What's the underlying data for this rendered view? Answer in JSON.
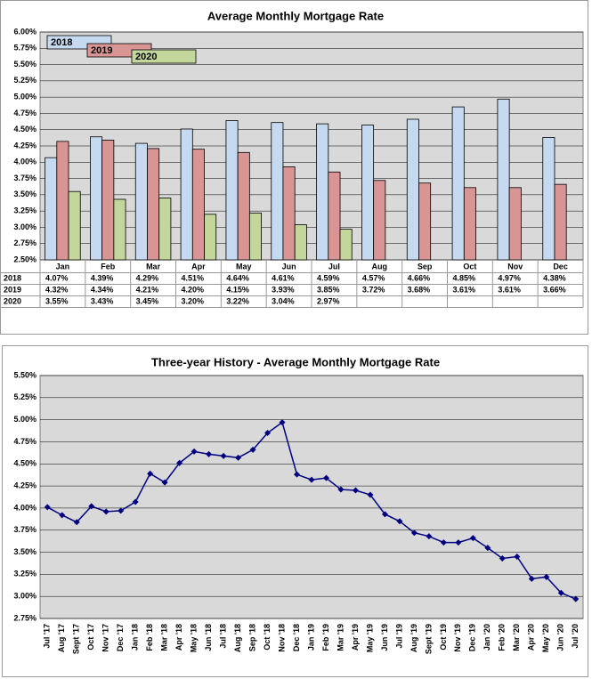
{
  "chart_data": [
    {
      "type": "bar",
      "title": "Average Monthly Mortgage Rate",
      "categories": [
        "Jan",
        "Feb",
        "Mar",
        "Apr",
        "May",
        "Jun",
        "Jul",
        "Aug",
        "Sep",
        "Oct",
        "Nov",
        "Dec"
      ],
      "series": [
        {
          "name": "2018",
          "color": "#c5d9f1",
          "values": [
            4.07,
            4.39,
            4.29,
            4.51,
            4.64,
            4.61,
            4.59,
            4.57,
            4.66,
            4.85,
            4.97,
            4.38
          ],
          "value_labels": [
            "4.07%",
            "4.39%",
            "4.29%",
            "4.51%",
            "4.64%",
            "4.61%",
            "4.59%",
            "4.57%",
            "4.66%",
            "4.85%",
            "4.97%",
            "4.38%"
          ]
        },
        {
          "name": "2019",
          "color": "#d99594",
          "values": [
            4.32,
            4.34,
            4.21,
            4.2,
            4.15,
            3.93,
            3.85,
            3.72,
            3.68,
            3.61,
            3.61,
            3.66
          ],
          "value_labels": [
            "4.32%",
            "4.34%",
            "4.21%",
            "4.20%",
            "4.15%",
            "3.93%",
            "3.85%",
            "3.72%",
            "3.68%",
            "3.61%",
            "3.61%",
            "3.66%"
          ]
        },
        {
          "name": "2020",
          "color": "#c3d69b",
          "values": [
            3.55,
            3.43,
            3.45,
            3.2,
            3.22,
            3.04,
            2.97,
            null,
            null,
            null,
            null,
            null
          ],
          "value_labels": [
            "3.55%",
            "3.43%",
            "3.45%",
            "3.20%",
            "3.22%",
            "3.04%",
            "2.97%",
            null,
            null,
            null,
            null,
            null
          ]
        }
      ],
      "ylim": [
        2.5,
        6.0
      ],
      "yticks": [
        {
          "value": 2.5,
          "label": "2.50%"
        },
        {
          "value": 2.75,
          "label": "2.75%"
        },
        {
          "value": 3.0,
          "label": "3.00%"
        },
        {
          "value": 3.25,
          "label": "3.25%"
        },
        {
          "value": 3.5,
          "label": "3.50%"
        },
        {
          "value": 3.75,
          "label": "3.75%"
        },
        {
          "value": 4.0,
          "label": "4.00%"
        },
        {
          "value": 4.25,
          "label": "4.25%"
        },
        {
          "value": 4.5,
          "label": "4.50%"
        },
        {
          "value": 4.75,
          "label": "4.75%"
        },
        {
          "value": 5.0,
          "label": "5.00%"
        },
        {
          "value": 5.25,
          "label": "5.25%"
        },
        {
          "value": 5.5,
          "label": "5.50%"
        },
        {
          "value": 5.75,
          "label": "5.75%"
        },
        {
          "value": 6.0,
          "label": "6.00%"
        }
      ],
      "grid": true
    },
    {
      "type": "line",
      "title": "Three-year History - Average Monthly Mortgage Rate",
      "categories": [
        "Jul '17",
        "Aug '17",
        "Sept '17",
        "Oct '17",
        "Nov '17",
        "Dec '17",
        "Jan '18",
        "Feb '18",
        "Mar '18",
        "Apr '18",
        "May '18",
        "Jun '18",
        "Jul '18",
        "Aug '18",
        "Sep '18",
        "Oct '18",
        "Nov '18",
        "Dec '18",
        "Jan '19",
        "Feb '19",
        "Mar '19",
        "Apr '19",
        "May '19",
        "Jun '19",
        "Jul '19",
        "Aug '19",
        "Sept '19",
        "Oct '19",
        "Nov '19",
        "Dec '19",
        "Jan '20",
        "Feb '20",
        "Mar '20",
        "Apr '20",
        "May '20",
        "Jun '20",
        "Jul '20"
      ],
      "values": [
        4.01,
        3.92,
        3.84,
        4.02,
        3.96,
        3.97,
        4.07,
        4.39,
        4.29,
        4.51,
        4.64,
        4.61,
        4.59,
        4.57,
        4.66,
        4.85,
        4.97,
        4.38,
        4.32,
        4.34,
        4.21,
        4.2,
        4.15,
        3.93,
        3.85,
        3.72,
        3.68,
        3.61,
        3.61,
        3.66,
        3.55,
        3.43,
        3.45,
        3.2,
        3.22,
        3.04,
        2.97
      ],
      "color": "#000080",
      "ylim": [
        2.75,
        5.5
      ],
      "yticks": [
        {
          "value": 2.75,
          "label": "2.75%"
        },
        {
          "value": 3.0,
          "label": "3.00%"
        },
        {
          "value": 3.25,
          "label": "3.25%"
        },
        {
          "value": 3.5,
          "label": "3.50%"
        },
        {
          "value": 3.75,
          "label": "3.75%"
        },
        {
          "value": 4.0,
          "label": "4.00%"
        },
        {
          "value": 4.25,
          "label": "4.25%"
        },
        {
          "value": 4.5,
          "label": "4.50%"
        },
        {
          "value": 4.75,
          "label": "4.75%"
        },
        {
          "value": 5.0,
          "label": "5.00%"
        },
        {
          "value": 5.25,
          "label": "5.25%"
        },
        {
          "value": 5.5,
          "label": "5.50%"
        }
      ],
      "grid": true
    }
  ]
}
